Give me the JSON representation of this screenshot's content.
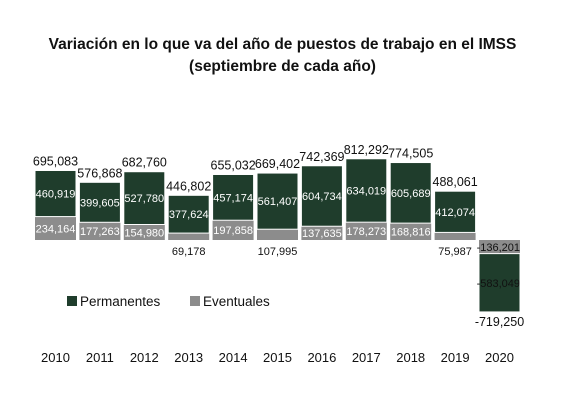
{
  "title": "Variación en lo que va del año de puestos de trabajo en el IMSS",
  "subtitle": "(septiembre de cada año)",
  "colors": {
    "permanentes": "#1f3d2c",
    "eventuales": "#8c8c8c"
  },
  "chart_data": {
    "type": "bar",
    "stacked": true,
    "title": "Variación en lo que va del año de puestos de trabajo en el IMSS",
    "subtitle": "(septiembre de cada año)",
    "categories": [
      "2010",
      "2011",
      "2012",
      "2013",
      "2014",
      "2015",
      "2016",
      "2017",
      "2018",
      "2019",
      "2020"
    ],
    "series": [
      {
        "name": "Permanentes",
        "values": [
          460919,
          399605,
          527780,
          377624,
          457174,
          561407,
          604734,
          634019,
          605689,
          412074,
          -583049
        ],
        "labels": [
          "460,919",
          "399,605",
          "527,780",
          "377,624",
          "457,174",
          "561,407",
          "604,734",
          "634,019",
          "605,689",
          "412,074",
          "-583,049"
        ]
      },
      {
        "name": "Eventuales",
        "values": [
          234164,
          177263,
          154980,
          69178,
          197858,
          107995,
          137635,
          178273,
          168816,
          75987,
          -136201
        ],
        "labels": [
          "234,164",
          "177,263",
          "154,980",
          "69,178",
          "197,858",
          "107,995",
          "137,635",
          "178,273",
          "168,816",
          "75,987",
          "-136,201"
        ]
      }
    ],
    "totals": [
      695083,
      576868,
      682760,
      446802,
      655032,
      669402,
      742369,
      812292,
      774505,
      488061,
      -719250
    ],
    "total_labels": [
      "695,083",
      "576,868",
      "682,760",
      "446,802",
      "655,032",
      "669,402",
      "742,369",
      "812,292",
      "774,505",
      "488,061",
      "-719,250"
    ],
    "legend": [
      "Permanentes",
      "Eventuales"
    ],
    "legend_position": "middle-left",
    "grid": false,
    "ylim": [
      -719250,
      812292
    ]
  }
}
